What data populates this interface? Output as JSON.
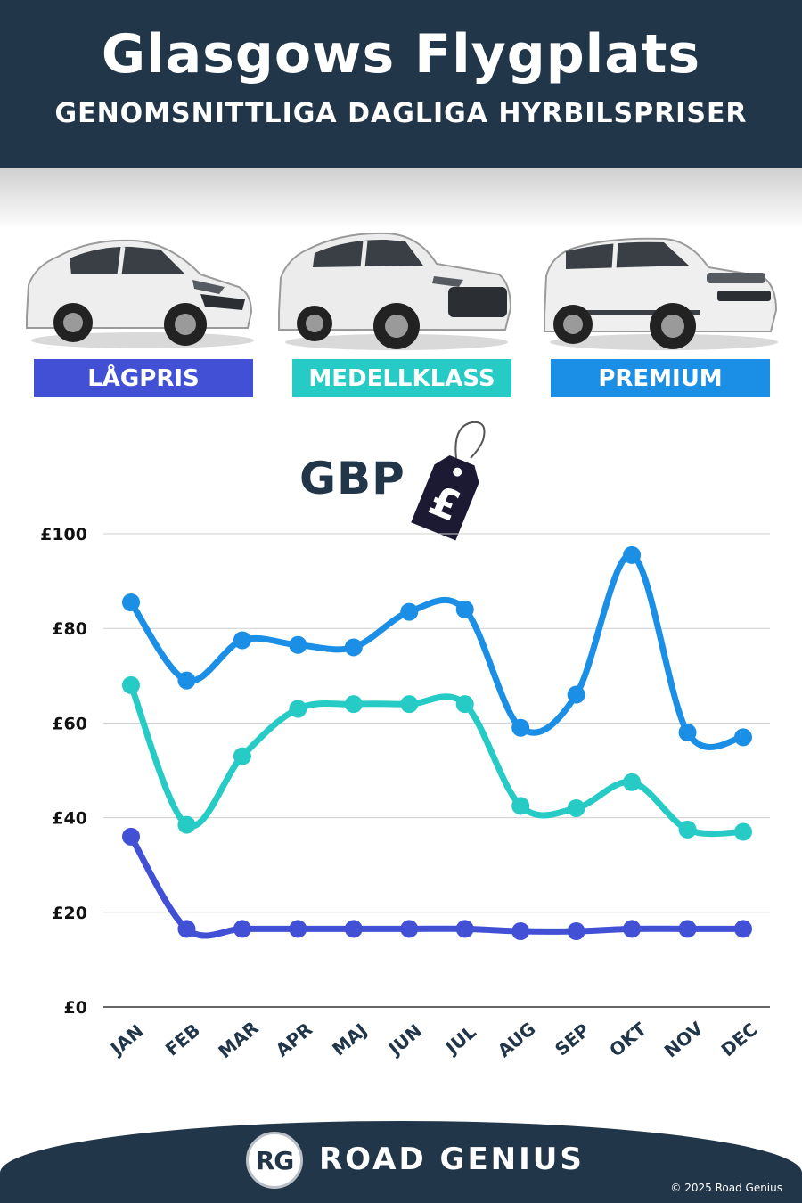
{
  "header": {
    "title": "Glasgows Flygplats",
    "subtitle": "GENOMSNITTLIGA DAGLIGA HYRBILSPRISER"
  },
  "classes": [
    {
      "label": "LÅGPRIS",
      "color": "#4250d6"
    },
    {
      "label": "MEDELLKLASS",
      "color": "#26cbc6"
    },
    {
      "label": "PREMIUM",
      "color": "#1b8fe6"
    }
  ],
  "currency_label": "GBP",
  "price_tag_symbol": "£",
  "chart_data": {
    "type": "line",
    "categories": [
      "JAN",
      "FEB",
      "MAR",
      "APR",
      "MAJ",
      "JUN",
      "JUL",
      "AUG",
      "SEP",
      "OKT",
      "NOV",
      "DEC"
    ],
    "series": [
      {
        "name": "PREMIUM",
        "color": "#1b8fe6",
        "values": [
          85.5,
          69,
          77.5,
          76.5,
          76,
          83.5,
          84,
          59,
          66,
          95.5,
          58,
          57
        ]
      },
      {
        "name": "MEDELLKLASS",
        "color": "#26cbc6",
        "values": [
          68,
          38.5,
          53,
          63,
          64,
          64,
          64,
          42.5,
          42,
          47.5,
          37.5,
          37
        ]
      },
      {
        "name": "LÅGPRIS",
        "color": "#4250d6",
        "values": [
          36,
          16.5,
          16.5,
          16.5,
          16.5,
          16.5,
          16.5,
          16,
          16,
          16.5,
          16.5,
          16.5
        ]
      }
    ],
    "yticks": [
      "£0",
      "£20",
      "£40",
      "£60",
      "£80",
      "£100"
    ],
    "ylim": [
      0,
      100
    ],
    "grid": true
  },
  "footer": {
    "logo_text": "RG",
    "brand": "ROAD GENIUS",
    "copyright": "© 2025 Road Genius"
  }
}
